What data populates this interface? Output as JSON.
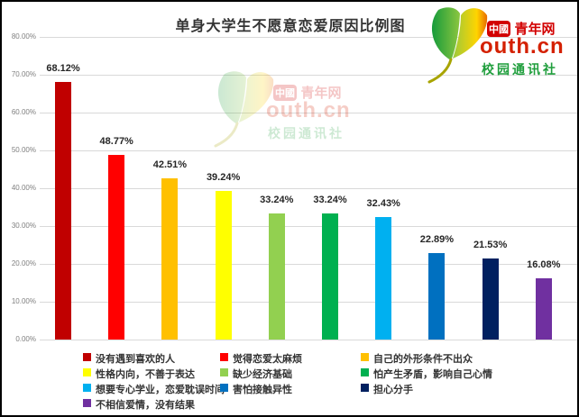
{
  "chart_data": {
    "type": "bar",
    "title": "单身大学生不愿意恋爱原因比例图",
    "categories": [
      "没有遇到喜欢的人",
      "觉得恋爱太麻烦",
      "自己的外形条件不出众",
      "性格内向，不善于表达",
      "缺少经济基础",
      "怕产生矛盾，影响自己心情",
      "想要专心学业，恋爱耽误时间",
      "害怕接触异性",
      "担心分手",
      "不相信爱情，没有结果"
    ],
    "values": [
      68.12,
      48.77,
      42.51,
      39.24,
      33.24,
      33.24,
      32.43,
      22.89,
      21.53,
      16.08
    ],
    "labels": [
      "68.12%",
      "48.77%",
      "42.51%",
      "39.24%",
      "33.24%",
      "33.24%",
      "32.43%",
      "22.89%",
      "21.53%",
      "16.08%"
    ],
    "colors": [
      "#C00000",
      "#FF0000",
      "#FFC000",
      "#FFFF00",
      "#92D050",
      "#00B050",
      "#00B0F0",
      "#0070C0",
      "#002060",
      "#7030A0"
    ],
    "xlabel": "",
    "ylabel": "",
    "ylim": [
      0,
      80
    ],
    "yticks": [
      "0.00%",
      "10.00%",
      "20.00%",
      "30.00%",
      "40.00%",
      "50.00%",
      "60.00%",
      "70.00%",
      "80.00%"
    ],
    "grid": true,
    "legend_position": "bottom"
  },
  "logo": {
    "badge": "中國",
    "brand": "青年网",
    "domain": "outh.cn",
    "subtitle": "校园通讯社",
    "red": "#d20000",
    "green": "#1f9e3c"
  }
}
